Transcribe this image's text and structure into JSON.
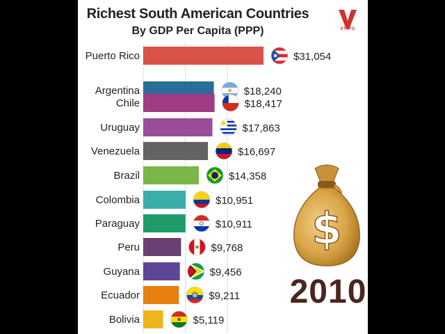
{
  "chart_data": {
    "type": "bar",
    "orientation": "horizontal",
    "title": "Richest South American Countries",
    "subtitle": "By GDP Per Capita (PPP)",
    "categories": [
      "Puerto Rico",
      "Argentina",
      "Chile",
      "Uruguay",
      "Venezuela",
      "Brazil",
      "Colombia",
      "Paraguay",
      "Peru",
      "Guyana",
      "Ecuador",
      "Bolivia"
    ],
    "values": [
      31054,
      18240,
      18417,
      17863,
      16697,
      14358,
      10951,
      10911,
      9768,
      9456,
      9211,
      5119
    ],
    "value_labels": [
      "$31,054",
      "$18,240",
      "$18,417",
      "$17,863",
      "$16,697",
      "$14,358",
      "$10,951",
      "$10,911",
      "$9,768",
      "$9,456",
      "$9,211",
      "$5,119"
    ],
    "colors": [
      "#d9534a",
      "#2b6c9a",
      "#a03c86",
      "#9b4d9c",
      "#636363",
      "#7ab648",
      "#3aaeaa",
      "#1e9b6a",
      "#6a3f74",
      "#5e4597",
      "#e8800f",
      "#efb51e"
    ],
    "flags": [
      "puerto-rico-flag-icon",
      "argentina-flag-icon",
      "chile-flag-icon",
      "uruguay-flag-icon",
      "venezuela-flag-icon",
      "brazil-flag-icon",
      "colombia-flag-icon",
      "paraguay-flag-icon",
      "peru-flag-icon",
      "guyana-flag-icon",
      "ecuador-flag-icon",
      "bolivia-flag-icon"
    ],
    "xlim": [
      0,
      31054
    ],
    "grid": true,
    "year": "2010"
  },
  "brand": {
    "logo_letter": "V",
    "logo_text": "STATS",
    "logo_color": "#d32f2f"
  },
  "decor": {
    "moneybag_symbol": "$",
    "moneybag_icon": "money-bag-icon"
  }
}
